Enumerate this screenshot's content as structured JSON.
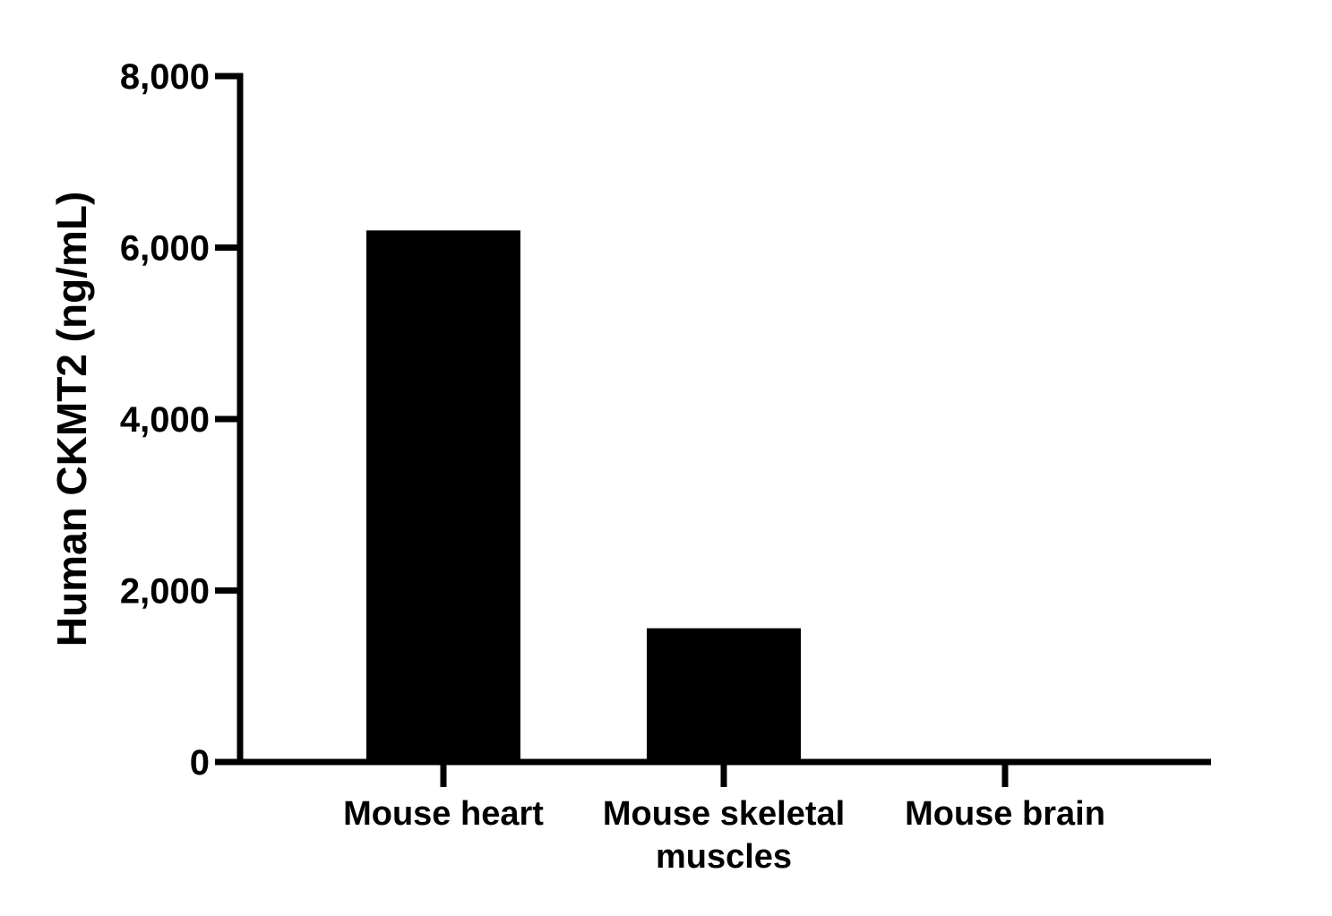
{
  "chart_data": {
    "type": "bar",
    "title": "",
    "xlabel": "",
    "ylabel": "Human CKMT2 (ng/mL)",
    "categories": [
      [
        "Mouse heart"
      ],
      [
        "Mouse skeletal",
        "muscles"
      ],
      [
        "Mouse brain"
      ]
    ],
    "values": [
      6200,
      1560,
      0
    ],
    "ylim": [
      0,
      8000
    ],
    "yticks": [
      0,
      2000,
      4000,
      6000,
      8000
    ],
    "ytick_labels": [
      "0",
      "2,000",
      "4,000",
      "6,000",
      "8,000"
    ],
    "grid": false,
    "legend": "none",
    "bar_color": "#000000",
    "axis_color": "#000000"
  }
}
